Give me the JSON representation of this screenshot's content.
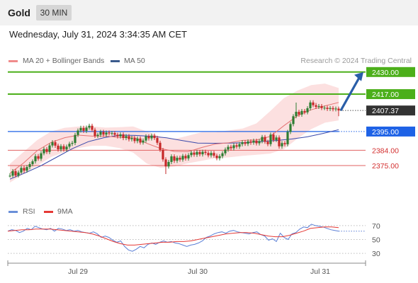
{
  "header": {
    "title": "Gold",
    "timeframe": "30 MIN"
  },
  "datetime": "Wednesday, July 31, 2024 3:34:35 AM CET",
  "legend": {
    "ma20_label": "MA 20 + Bollinger Bands",
    "ma50_label": "MA 50",
    "rsi_label": "RSI",
    "rsi_ma_label": "9MA"
  },
  "credit": "Research © 2024 Trading Central",
  "colors": {
    "candle_up": "#2e7d32",
    "candle_down": "#c62828",
    "ma20": "#e57373",
    "ma50": "#3949ab",
    "bands": "#fbd5d5",
    "resistance": "#4caf1a",
    "pivot": "#1e62e6",
    "support": "#e06060",
    "last": "#333333",
    "arrow": "#2a5ea8",
    "rsi": "#5b7fd6",
    "rsi_ma": "#e53935"
  },
  "chart_data": [
    {
      "type": "candlestick",
      "title": "",
      "x_ticks": [
        "Jul 29",
        "Jul 30",
        "Jul 31"
      ],
      "ylim": [
        2365,
        2432
      ],
      "candles": [
        [
          2369.0,
          2369.0,
          2368.0,
          2370.4
        ],
        [
          2369.0,
          2371.7,
          2368.0,
          2372.9
        ],
        [
          2371.7,
          2369.1,
          2368.0,
          2372.9
        ],
        [
          2369.1,
          2370.9,
          2368.0,
          2372.1
        ],
        [
          2370.9,
          2373.6,
          2370.0,
          2374.8
        ],
        [
          2373.6,
          2372.0,
          2370.6,
          2374.8
        ],
        [
          2372.0,
          2374.1,
          2370.8,
          2375.3
        ],
        [
          2374.1,
          2375.8,
          2372.8,
          2377.0
        ],
        [
          2375.8,
          2377.5,
          2374.6,
          2378.6
        ],
        [
          2377.5,
          2380.5,
          2376.2,
          2381.8
        ],
        [
          2380.5,
          2379.0,
          2377.8,
          2381.8
        ],
        [
          2379.0,
          2382.2,
          2377.7,
          2383.5
        ],
        [
          2382.2,
          2384.7,
          2381.0,
          2385.9
        ],
        [
          2384.7,
          2383.0,
          2381.8,
          2385.9
        ],
        [
          2383.0,
          2386.8,
          2381.7,
          2388.0
        ],
        [
          2386.8,
          2388.7,
          2385.6,
          2389.9
        ],
        [
          2388.7,
          2386.7,
          2385.4,
          2389.9
        ],
        [
          2386.7,
          2384.5,
          2383.2,
          2387.9
        ],
        [
          2384.5,
          2386.4,
          2383.2,
          2387.6
        ],
        [
          2386.4,
          2384.5,
          2383.2,
          2387.6
        ],
        [
          2384.5,
          2386.1,
          2383.2,
          2387.3
        ],
        [
          2386.1,
          2387.8,
          2384.8,
          2389.0
        ],
        [
          2387.8,
          2388.3,
          2386.5,
          2389.5
        ],
        [
          2388.3,
          2393.0,
          2387.0,
          2394.2
        ],
        [
          2393.0,
          2395.6,
          2391.8,
          2396.8
        ],
        [
          2395.6,
          2397.1,
          2394.4,
          2398.4
        ],
        [
          2397.1,
          2395.4,
          2394.2,
          2398.4
        ],
        [
          2395.4,
          2397.3,
          2394.1,
          2398.5
        ],
        [
          2397.3,
          2398.4,
          2396.1,
          2399.6
        ],
        [
          2398.4,
          2396.0,
          2394.8,
          2399.6
        ],
        [
          2396.0,
          2392.4,
          2391.2,
          2397.2
        ],
        [
          2392.4,
          2393.1,
          2391.2,
          2394.3
        ],
        [
          2393.1,
          2394.8,
          2391.8,
          2396.0
        ],
        [
          2394.8,
          2393.2,
          2391.9,
          2396.0
        ],
        [
          2393.2,
          2394.4,
          2391.9,
          2395.6
        ],
        [
          2394.4,
          2393.9,
          2392.7,
          2395.6
        ],
        [
          2393.9,
          2394.1,
          2392.7,
          2395.3
        ],
        [
          2394.1,
          2393.1,
          2391.8,
          2395.3
        ],
        [
          2393.1,
          2392.2,
          2390.9,
          2394.3
        ],
        [
          2392.2,
          2393.3,
          2390.9,
          2394.5
        ],
        [
          2393.3,
          2391.2,
          2389.9,
          2394.5
        ],
        [
          2391.2,
          2392.3,
          2389.9,
          2393.5
        ],
        [
          2392.3,
          2390.5,
          2389.2,
          2393.5
        ],
        [
          2390.5,
          2391.2,
          2389.2,
          2392.4
        ],
        [
          2391.2,
          2389.4,
          2388.1,
          2392.4
        ],
        [
          2389.4,
          2390.9,
          2388.1,
          2392.1
        ],
        [
          2390.9,
          2388.5,
          2387.3,
          2392.1
        ],
        [
          2388.5,
          2389.7,
          2387.3,
          2390.9
        ],
        [
          2389.7,
          2392.2,
          2388.5,
          2393.4
        ],
        [
          2392.2,
          2391.0,
          2389.7,
          2393.4
        ],
        [
          2391.0,
          2392.6,
          2389.7,
          2393.8
        ],
        [
          2392.6,
          2391.2,
          2390.0,
          2393.8
        ],
        [
          2391.2,
          2388.4,
          2387.1,
          2392.4
        ],
        [
          2388.4,
          2384.2,
          2383.0,
          2389.6
        ],
        [
          2384.2,
          2378.6,
          2377.3,
          2385.4
        ],
        [
          2378.6,
          2374.5,
          2370.0,
          2379.8
        ],
        [
          2374.5,
          2377.1,
          2373.2,
          2378.3
        ],
        [
          2377.1,
          2380.4,
          2375.8,
          2381.6
        ],
        [
          2380.4,
          2377.8,
          2376.5,
          2381.6
        ],
        [
          2377.8,
          2379.6,
          2376.5,
          2380.8
        ],
        [
          2379.6,
          2378.5,
          2377.3,
          2380.8
        ],
        [
          2378.5,
          2380.7,
          2377.3,
          2381.9
        ],
        [
          2380.7,
          2379.2,
          2377.9,
          2381.9
        ],
        [
          2379.2,
          2381.1,
          2377.9,
          2382.3
        ],
        [
          2381.1,
          2382.6,
          2379.9,
          2383.8
        ],
        [
          2382.6,
          2381.4,
          2380.2,
          2383.8
        ],
        [
          2381.4,
          2383.0,
          2380.1,
          2384.2
        ],
        [
          2383.0,
          2381.6,
          2380.4,
          2384.2
        ],
        [
          2381.6,
          2383.1,
          2380.3,
          2384.3
        ],
        [
          2383.1,
          2382.4,
          2381.1,
          2384.3
        ],
        [
          2382.4,
          2381.0,
          2379.8,
          2383.6
        ],
        [
          2381.0,
          2382.4,
          2379.7,
          2383.6
        ],
        [
          2382.4,
          2380.8,
          2379.6,
          2383.6
        ],
        [
          2380.8,
          2379.3,
          2378.1,
          2382.0
        ],
        [
          2379.3,
          2380.5,
          2378.0,
          2381.7
        ],
        [
          2380.5,
          2382.2,
          2379.2,
          2383.4
        ],
        [
          2382.2,
          2384.4,
          2380.9,
          2385.6
        ],
        [
          2384.4,
          2386.0,
          2383.1,
          2387.2
        ],
        [
          2386.0,
          2385.2,
          2383.9,
          2387.2
        ],
        [
          2385.2,
          2386.9,
          2383.9,
          2388.1
        ],
        [
          2386.9,
          2386.1,
          2384.9,
          2388.1
        ],
        [
          2386.1,
          2387.6,
          2384.8,
          2388.8
        ],
        [
          2387.6,
          2388.7,
          2386.3,
          2389.9
        ],
        [
          2388.7,
          2387.8,
          2386.6,
          2389.9
        ],
        [
          2387.8,
          2389.2,
          2386.5,
          2390.4
        ],
        [
          2389.2,
          2388.5,
          2387.2,
          2390.4
        ],
        [
          2388.5,
          2389.6,
          2387.2,
          2390.8
        ],
        [
          2389.6,
          2388.1,
          2386.8,
          2390.8
        ],
        [
          2388.1,
          2389.4,
          2386.8,
          2390.6
        ],
        [
          2389.4,
          2391.8,
          2388.1,
          2393.0
        ],
        [
          2391.8,
          2389.0,
          2387.8,
          2393.0
        ],
        [
          2389.0,
          2387.6,
          2386.4,
          2390.2
        ],
        [
          2387.6,
          2393.2,
          2386.3,
          2394.4
        ],
        [
          2393.2,
          2390.0,
          2388.8,
          2394.4
        ],
        [
          2390.0,
          2391.5,
          2388.8,
          2392.7
        ],
        [
          2391.5,
          2386.3,
          2384.9,
          2392.7
        ],
        [
          2386.3,
          2388.2,
          2384.9,
          2389.4
        ],
        [
          2388.2,
          2387.5,
          2386.2,
          2389.4
        ],
        [
          2387.5,
          2394.8,
          2386.2,
          2396.0
        ],
        [
          2394.8,
          2399.4,
          2393.5,
          2400.6
        ],
        [
          2399.4,
          2404.0,
          2398.1,
          2405.2
        ],
        [
          2404.0,
          2406.6,
          2402.8,
          2412.0
        ],
        [
          2406.6,
          2405.0,
          2403.7,
          2407.8
        ],
        [
          2405.0,
          2407.1,
          2403.7,
          2408.3
        ],
        [
          2407.1,
          2406.3,
          2405.1,
          2408.3
        ],
        [
          2406.3,
          2408.7,
          2405.1,
          2409.9
        ],
        [
          2408.7,
          2412.1,
          2407.4,
          2413.4
        ],
        [
          2412.1,
          2410.5,
          2409.3,
          2413.4
        ],
        [
          2410.5,
          2409.5,
          2408.3,
          2411.8
        ],
        [
          2409.5,
          2410.0,
          2408.3,
          2411.2
        ],
        [
          2410.0,
          2408.8,
          2407.6,
          2411.2
        ],
        [
          2408.8,
          2409.0,
          2407.6,
          2410.2
        ],
        [
          2409.0,
          2408.3,
          2407.1,
          2410.2
        ],
        [
          2408.3,
          2408.8,
          2407.1,
          2410.0
        ],
        [
          2408.8,
          2408.1,
          2406.9,
          2410.0
        ],
        [
          2408.1,
          2408.5,
          2406.9,
          2409.7
        ],
        [
          2408.5,
          2407.4,
          2404.0,
          2409.7
        ]
      ],
      "ma20": [
        2370.5,
        2376.5,
        2383.8,
        2388.6,
        2391.4,
        2392.9,
        2392.3,
        2392.3,
        2391.5,
        2391.8,
        2388.0,
        2385.0,
        2383.3,
        2383.1,
        2385.6,
        2387.7,
        2388.4,
        2389.8,
        2390.0,
        2392.1,
        2398.4,
        2404.3,
        2407.8,
        2410.1,
        2412.1
      ],
      "ma50": [
        2367.0,
        2370.8,
        2375.0,
        2380.0,
        2385.0,
        2389.0,
        2391.4,
        2392.9,
        2392.7,
        2392.2,
        2391.3,
        2389.7,
        2388.2,
        2388.1,
        2388.2,
        2388.4,
        2389.1,
        2389.7,
        2390.6,
        2391.9,
        2393.9,
        2396.1
      ],
      "bands_upper": [
        2376.0,
        2383.0,
        2390.0,
        2395.0,
        2397.2,
        2397.9,
        2398.0,
        2397.3,
        2397.6,
        2398.0,
        2395.0,
        2392.0,
        2390.6,
        2392.5,
        2394.6,
        2394.6,
        2395.7,
        2396.8,
        2399.8,
        2407.0,
        2414.6,
        2419.1,
        2422.3,
        2423.2,
        2420.6
      ],
      "bands_lower": [
        2365.0,
        2370.0,
        2375.0,
        2380.0,
        2383.0,
        2385.3,
        2386.6,
        2386.6,
        2385.3,
        2382.6,
        2376.1,
        2373.6,
        2374.4,
        2376.3,
        2377.8,
        2379.3,
        2379.8,
        2380.7,
        2381.3,
        2382.0,
        2384.6,
        2390.9,
        2396.4,
        2400.2,
        2401.6
      ],
      "projection": {
        "from": 2407.37,
        "to": 2430.0
      },
      "levels": [
        {
          "value": 2430.0,
          "label": "2430.00",
          "kind": "resistance"
        },
        {
          "value": 2417.0,
          "label": "2417.00",
          "kind": "resistance"
        },
        {
          "value": 2407.37,
          "label": "2407.37",
          "kind": "last"
        },
        {
          "value": 2395.0,
          "label": "2395.00",
          "kind": "pivot"
        },
        {
          "value": 2384.0,
          "label": "2384.00",
          "kind": "support"
        },
        {
          "value": 2375.0,
          "label": "2375.00",
          "kind": "support"
        }
      ]
    },
    {
      "type": "line",
      "title": "",
      "ylim": [
        20,
        80
      ],
      "y_ticks": [
        "70",
        "50",
        "30"
      ],
      "series": [
        {
          "name": "RSI",
          "values": [
            62,
            64,
            63,
            60,
            62,
            66,
            64,
            69,
            67,
            65,
            64,
            66,
            62,
            66,
            65,
            63,
            64,
            62,
            63,
            61,
            60,
            59,
            61,
            58,
            53,
            55,
            53,
            49,
            46,
            48,
            40,
            35,
            33,
            36,
            40,
            38,
            43,
            45,
            43,
            46,
            48,
            46,
            47,
            45,
            44,
            42,
            40,
            42,
            43,
            45,
            48,
            53,
            55,
            58,
            60,
            61,
            59,
            62,
            63,
            61,
            60,
            59,
            58,
            60,
            61,
            57,
            55,
            49,
            51,
            47,
            59,
            53,
            50,
            58,
            60,
            65,
            68,
            67,
            72,
            70,
            69,
            68,
            66,
            64,
            63,
            62
          ]
        },
        {
          "name": "9MA",
          "values": [
            62,
            63,
            64,
            64,
            65,
            65,
            65,
            64,
            63,
            62,
            61,
            60,
            58,
            55,
            51,
            47,
            44,
            42,
            42,
            43,
            44,
            45,
            46,
            46,
            47,
            47,
            48,
            50,
            52,
            54,
            56,
            58,
            59,
            60,
            60,
            59,
            57,
            55,
            54,
            54,
            56,
            59,
            62,
            66,
            67,
            68,
            68,
            67
          ]
        }
      ]
    }
  ]
}
